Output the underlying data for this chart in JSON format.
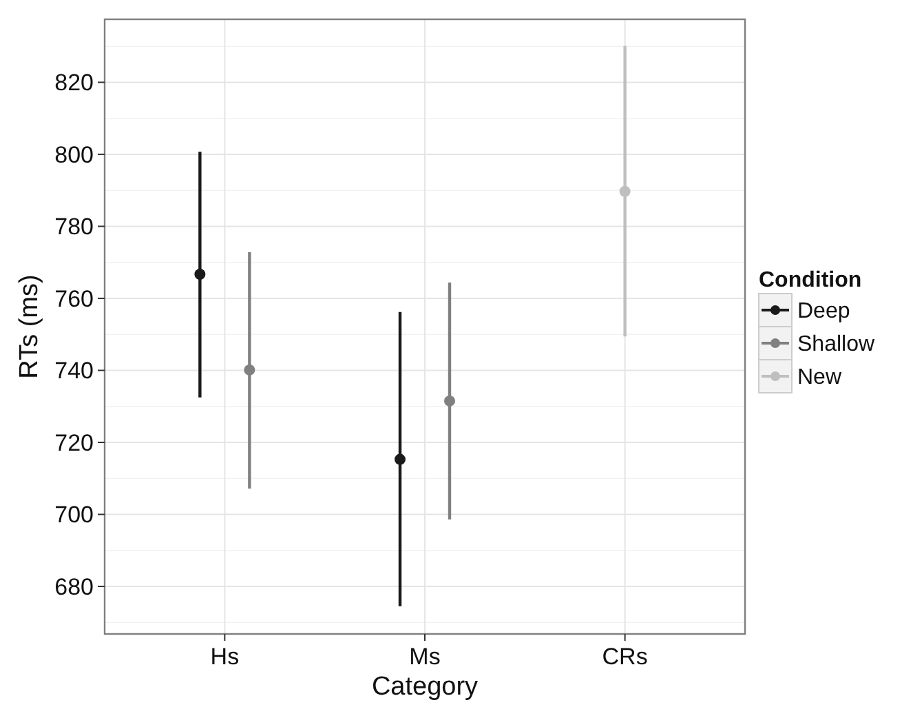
{
  "chart_data": {
    "type": "scatter",
    "xlabel": "Category",
    "ylabel": "RTs (ms)",
    "legend_title": "Condition",
    "categories": [
      "Hs",
      "Ms",
      "CRs"
    ],
    "series": [
      {
        "name": "Deep",
        "color": "#1a1a1a",
        "values": [
          766.7,
          715.3,
          null
        ],
        "errors": [
          [
            732.5,
            800.7
          ],
          [
            674.5,
            756.2
          ],
          null
        ]
      },
      {
        "name": "Shallow",
        "color": "#808080",
        "values": [
          740.1,
          731.5,
          null
        ],
        "errors": [
          [
            707.2,
            772.8
          ],
          [
            698.6,
            764.4
          ],
          null
        ]
      },
      {
        "name": "New",
        "color": "#bfbfbf",
        "values": [
          null,
          null,
          789.7
        ],
        "errors": [
          null,
          null,
          [
            749.4,
            830.1
          ]
        ]
      }
    ],
    "ylim": [
      666.8,
      837.5
    ],
    "yticks": [
      680,
      700,
      720,
      740,
      760,
      780,
      800,
      820
    ],
    "grid": true,
    "legend": "right",
    "marker": "circle"
  }
}
